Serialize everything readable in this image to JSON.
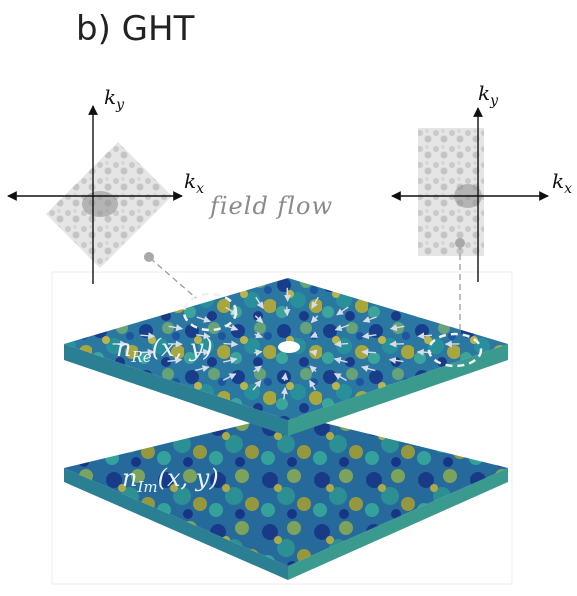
{
  "title": "b) GHT",
  "axes": {
    "kx": "k",
    "kx_sub": "x",
    "ky": "k",
    "ky_sub": "y"
  },
  "flow_label": "field flow",
  "planes": {
    "real": {
      "n": "n",
      "sub": "Re",
      "args": "(x, y)"
    },
    "imag": {
      "n": "n",
      "sub": "Im",
      "args": "(x, y)"
    }
  },
  "colors": {
    "plane_blue": "#1e4f9c",
    "plane_teal": "#3aa39a",
    "plane_yellow": "#b8b23a",
    "arrow": "#d9dce8",
    "guide": "#9a9a9a"
  }
}
